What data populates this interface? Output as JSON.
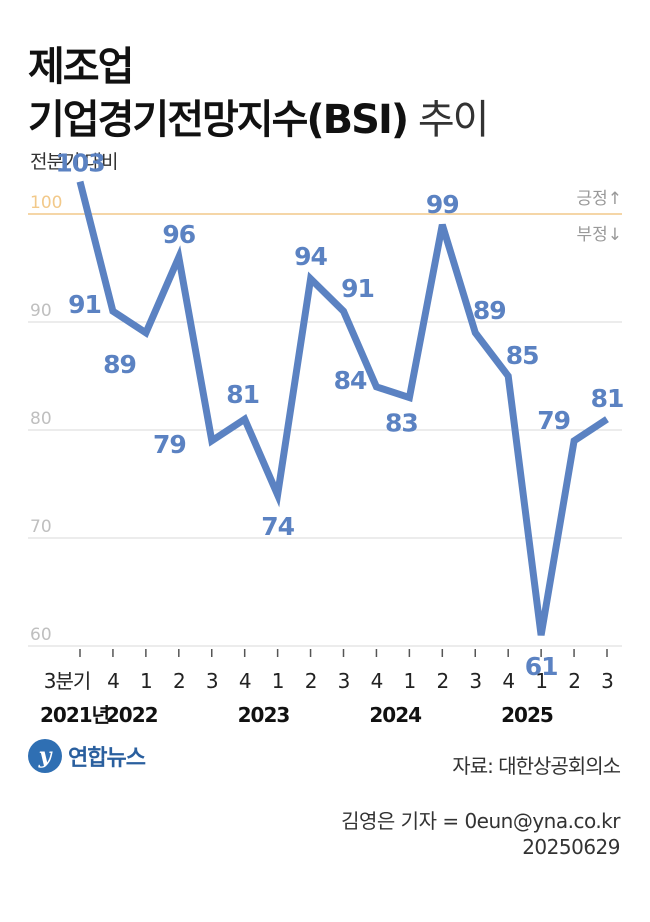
{
  "title": {
    "line1": "제조업",
    "line2_main": "기업경기전망지수(BSI)",
    "line2_suffix": " 추이"
  },
  "subtitle": "전분기 대비",
  "annotations": {
    "positive": "긍정↑",
    "negative": "부정↓"
  },
  "source": "자료: 대한상공회의소",
  "credit": {
    "reporter": "김영은 기자 = 0eun@yna.co.kr",
    "date": "20250629"
  },
  "logo": {
    "text": "연합뉴스"
  },
  "colors": {
    "line": "#5b82c2",
    "label": "#5b82c2",
    "baseline": "#f2c98a",
    "grid": "#d9d9d9",
    "axis_text": "#bfbfbf"
  },
  "chart_data": {
    "type": "line",
    "x": [
      "3분기",
      "4",
      "1",
      "2",
      "3",
      "4",
      "1",
      "2",
      "3",
      "4",
      "1",
      "2",
      "3",
      "4",
      "1",
      "2",
      "3"
    ],
    "values": [
      103,
      91,
      89,
      96,
      79,
      81,
      74,
      94,
      91,
      84,
      83,
      99,
      89,
      85,
      61,
      79,
      81
    ],
    "years": [
      {
        "label": "2021년",
        "index": 0
      },
      {
        "label": "2022",
        "index": 2
      },
      {
        "label": "2023",
        "index": 6
      },
      {
        "label": "2024",
        "index": 10
      },
      {
        "label": "2025",
        "index": 14
      }
    ],
    "yticks": [
      60,
      70,
      80,
      90,
      100
    ],
    "ylim": [
      55,
      105
    ],
    "baseline": 100,
    "grid": true
  }
}
